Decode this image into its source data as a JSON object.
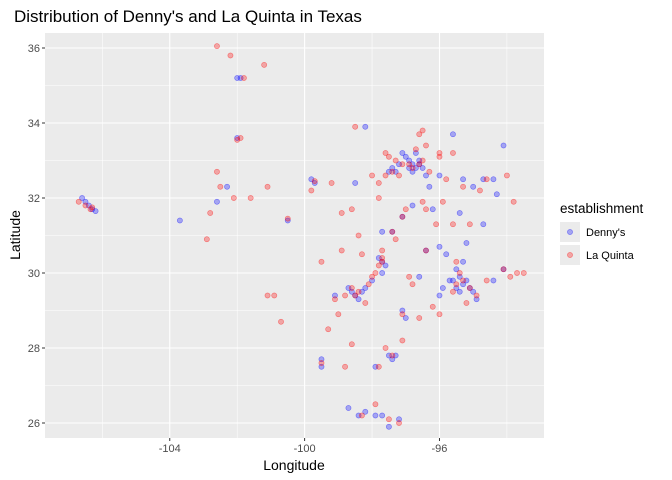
{
  "chart_data": {
    "type": "scatter",
    "title": "Distribution of Denny's and La Quinta in Texas",
    "xlabel": "Longitude",
    "ylabel": "Latitude",
    "xlim": [
      -107.7,
      -92.9
    ],
    "ylim": [
      25.6,
      36.4
    ],
    "x_ticks": [
      -104,
      -100,
      -96
    ],
    "x_tick_labels": [
      "-104",
      "-100",
      "-96"
    ],
    "y_ticks": [
      26,
      28,
      30,
      32,
      34,
      36
    ],
    "y_tick_labels": [
      "26",
      "28",
      "30",
      "32",
      "34",
      "36"
    ],
    "grid": true,
    "legend": {
      "title": "establishment",
      "position": "right"
    },
    "series": [
      {
        "name": "Denny's",
        "color": "#0000FF",
        "opacity": 0.3,
        "points": [
          [
            -106.6,
            32.0
          ],
          [
            -106.5,
            31.9
          ],
          [
            -106.4,
            31.8
          ],
          [
            -106.3,
            31.7
          ],
          [
            -106.2,
            31.65
          ],
          [
            -102.0,
            35.2
          ],
          [
            -101.9,
            35.2
          ],
          [
            -102.0,
            33.6
          ],
          [
            -102.3,
            32.3
          ],
          [
            -103.7,
            31.4
          ],
          [
            -102.6,
            31.9
          ],
          [
            -100.5,
            31.4
          ],
          [
            -99.8,
            32.5
          ],
          [
            -99.7,
            32.4
          ],
          [
            -98.5,
            32.4
          ],
          [
            -98.2,
            33.9
          ],
          [
            -97.1,
            33.2
          ],
          [
            -97.0,
            33.1
          ],
          [
            -96.9,
            33.0
          ],
          [
            -96.8,
            32.9
          ],
          [
            -96.7,
            32.8
          ],
          [
            -96.6,
            32.9
          ],
          [
            -96.8,
            32.7
          ],
          [
            -96.9,
            32.8
          ],
          [
            -97.3,
            32.7
          ],
          [
            -97.4,
            32.8
          ],
          [
            -97.2,
            32.9
          ],
          [
            -96.5,
            32.8
          ],
          [
            -96.4,
            32.6
          ],
          [
            -96.6,
            33.0
          ],
          [
            -96.7,
            33.2
          ],
          [
            -97.5,
            32.7
          ],
          [
            -96.3,
            32.3
          ],
          [
            -96.0,
            32.6
          ],
          [
            -95.3,
            32.5
          ],
          [
            -95.0,
            32.3
          ],
          [
            -94.7,
            32.5
          ],
          [
            -94.4,
            32.5
          ],
          [
            -94.3,
            32.1
          ],
          [
            -94.1,
            33.4
          ],
          [
            -95.6,
            33.7
          ],
          [
            -95.4,
            31.6
          ],
          [
            -94.7,
            31.3
          ],
          [
            -96.2,
            31.7
          ],
          [
            -97.1,
            31.5
          ],
          [
            -97.4,
            31.1
          ],
          [
            -97.7,
            31.1
          ],
          [
            -97.7,
            30.3
          ],
          [
            -97.8,
            30.4
          ],
          [
            -97.6,
            30.2
          ],
          [
            -97.7,
            30.0
          ],
          [
            -98.0,
            29.8
          ],
          [
            -98.2,
            29.6
          ],
          [
            -98.3,
            29.5
          ],
          [
            -98.5,
            29.4
          ],
          [
            -98.6,
            29.5
          ],
          [
            -98.4,
            29.3
          ],
          [
            -98.7,
            29.6
          ],
          [
            -99.1,
            29.4
          ],
          [
            -97.1,
            29.0
          ],
          [
            -97.0,
            28.8
          ],
          [
            -96.0,
            30.7
          ],
          [
            -95.8,
            30.5
          ],
          [
            -95.5,
            30.1
          ],
          [
            -95.4,
            29.9
          ],
          [
            -95.3,
            29.7
          ],
          [
            -95.5,
            29.6
          ],
          [
            -95.6,
            29.8
          ],
          [
            -95.4,
            29.5
          ],
          [
            -95.2,
            29.8
          ],
          [
            -95.1,
            29.6
          ],
          [
            -95.0,
            29.5
          ],
          [
            -94.9,
            29.3
          ],
          [
            -95.7,
            29.8
          ],
          [
            -95.9,
            29.6
          ],
          [
            -95.3,
            30.3
          ],
          [
            -94.1,
            30.1
          ],
          [
            -94.4,
            29.8
          ],
          [
            -96.4,
            30.6
          ],
          [
            -96.0,
            29.4
          ],
          [
            -97.5,
            27.8
          ],
          [
            -97.4,
            27.7
          ],
          [
            -97.3,
            27.8
          ],
          [
            -97.9,
            27.5
          ],
          [
            -99.5,
            27.7
          ],
          [
            -99.5,
            27.5
          ],
          [
            -98.2,
            26.3
          ],
          [
            -97.9,
            26.2
          ],
          [
            -97.7,
            26.2
          ],
          [
            -97.5,
            25.9
          ],
          [
            -97.2,
            26.1
          ],
          [
            -98.7,
            26.4
          ],
          [
            -98.4,
            26.2
          ],
          [
            -96.6,
            29.9
          ],
          [
            -95.2,
            30.8
          ],
          [
            -96.8,
            31.8
          ]
        ]
      },
      {
        "name": "La Quinta",
        "color": "#FF0000",
        "opacity": 0.3,
        "points": [
          [
            -106.5,
            31.8
          ],
          [
            -106.3,
            31.75
          ],
          [
            -106.35,
            31.7
          ],
          [
            -106.7,
            31.9
          ],
          [
            -102.6,
            36.05
          ],
          [
            -102.2,
            35.8
          ],
          [
            -101.8,
            35.2
          ],
          [
            -101.2,
            35.55
          ],
          [
            -102.0,
            33.55
          ],
          [
            -101.9,
            33.6
          ],
          [
            -102.5,
            32.3
          ],
          [
            -102.8,
            31.6
          ],
          [
            -102.9,
            30.9
          ],
          [
            -102.1,
            32.0
          ],
          [
            -101.6,
            32.0
          ],
          [
            -101.1,
            32.3
          ],
          [
            -100.5,
            31.45
          ],
          [
            -101.1,
            29.4
          ],
          [
            -100.7,
            28.7
          ],
          [
            -99.7,
            32.45
          ],
          [
            -99.2,
            32.4
          ],
          [
            -98.6,
            31.7
          ],
          [
            -98.0,
            32.6
          ],
          [
            -98.5,
            33.9
          ],
          [
            -97.6,
            33.2
          ],
          [
            -97.5,
            33.1
          ],
          [
            -97.3,
            33.0
          ],
          [
            -97.1,
            32.9
          ],
          [
            -96.9,
            32.9
          ],
          [
            -96.8,
            32.8
          ],
          [
            -96.6,
            32.9
          ],
          [
            -96.5,
            33.0
          ],
          [
            -96.7,
            33.3
          ],
          [
            -96.4,
            33.4
          ],
          [
            -96.0,
            33.1
          ],
          [
            -96.3,
            32.7
          ],
          [
            -97.4,
            32.7
          ],
          [
            -97.6,
            32.6
          ],
          [
            -97.2,
            32.6
          ],
          [
            -97.8,
            32.4
          ],
          [
            -96.6,
            33.7
          ],
          [
            -96.5,
            33.8
          ],
          [
            -96.0,
            33.2
          ],
          [
            -95.8,
            32.5
          ],
          [
            -95.3,
            32.3
          ],
          [
            -94.8,
            32.2
          ],
          [
            -94.6,
            32.5
          ],
          [
            -94.0,
            32.6
          ],
          [
            -93.8,
            31.9
          ],
          [
            -95.1,
            31.3
          ],
          [
            -95.6,
            33.2
          ],
          [
            -95.9,
            31.9
          ],
          [
            -96.4,
            31.7
          ],
          [
            -97.1,
            31.5
          ],
          [
            -97.4,
            31.1
          ],
          [
            -97.7,
            30.4
          ],
          [
            -97.7,
            30.3
          ],
          [
            -97.8,
            30.2
          ],
          [
            -97.9,
            30.0
          ],
          [
            -98.0,
            29.9
          ],
          [
            -98.1,
            29.7
          ],
          [
            -98.4,
            29.5
          ],
          [
            -98.5,
            29.4
          ],
          [
            -98.6,
            29.6
          ],
          [
            -98.8,
            29.4
          ],
          [
            -98.2,
            29.2
          ],
          [
            -99.1,
            29.3
          ],
          [
            -99.0,
            28.9
          ],
          [
            -99.3,
            28.5
          ],
          [
            -98.6,
            28.1
          ],
          [
            -98.8,
            27.5
          ],
          [
            -99.5,
            27.6
          ],
          [
            -97.6,
            28.0
          ],
          [
            -97.4,
            27.8
          ],
          [
            -97.1,
            28.2
          ],
          [
            -97.8,
            27.5
          ],
          [
            -97.9,
            26.5
          ],
          [
            -98.3,
            26.2
          ],
          [
            -97.5,
            26.1
          ],
          [
            -97.2,
            26.0
          ],
          [
            -96.9,
            29.9
          ],
          [
            -96.4,
            30.6
          ],
          [
            -95.5,
            30.3
          ],
          [
            -95.4,
            30.0
          ],
          [
            -95.3,
            29.8
          ],
          [
            -95.5,
            29.7
          ],
          [
            -95.6,
            29.5
          ],
          [
            -95.1,
            29.6
          ],
          [
            -94.9,
            29.4
          ],
          [
            -95.2,
            29.2
          ],
          [
            -94.6,
            29.8
          ],
          [
            -94.1,
            30.1
          ],
          [
            -93.7,
            30.0
          ],
          [
            -93.5,
            30.0
          ],
          [
            -93.9,
            29.9
          ],
          [
            -96.2,
            29.1
          ],
          [
            -96.0,
            28.9
          ],
          [
            -96.6,
            28.8
          ],
          [
            -97.1,
            28.9
          ],
          [
            -96.8,
            29.7
          ],
          [
            -97.3,
            30.9
          ],
          [
            -97.0,
            31.7
          ],
          [
            -96.5,
            31.9
          ],
          [
            -96.1,
            31.3
          ],
          [
            -95.6,
            31.3
          ],
          [
            -98.4,
            31.0
          ],
          [
            -98.9,
            30.6
          ],
          [
            -99.5,
            30.3
          ],
          [
            -98.3,
            30.5
          ],
          [
            -97.7,
            30.6
          ],
          [
            -100.9,
            29.4
          ],
          [
            -102.6,
            32.7
          ],
          [
            -99.8,
            32.2
          ],
          [
            -98.9,
            31.6
          ],
          [
            -97.8,
            32.0
          ]
        ]
      }
    ]
  }
}
